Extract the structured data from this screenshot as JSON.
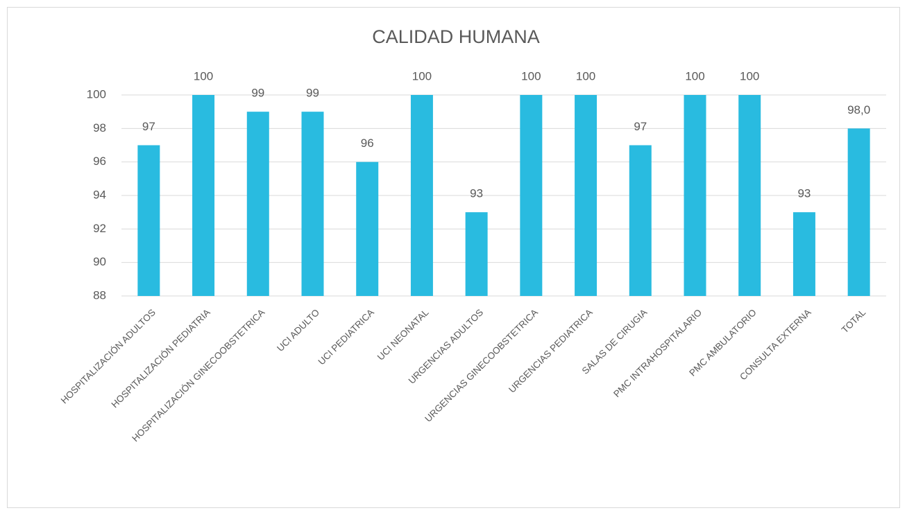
{
  "chart_data": {
    "type": "bar",
    "title": "CALIDAD  HUMANA",
    "categories": [
      "HOSPITALIZACIÓN ADULTOS",
      "HOSPITALIZACIÓN PEDIATRIA",
      "HOSPITALIZACIÓN GINECOOBSTETRICA",
      "UCI ADULTO",
      "UCI PEDIATRICA",
      "UCI NEONATAL",
      "URGENCIAS ADULTOS",
      "URGENCIAS GINECOOBSTETRICA",
      "URGENCIAS PEDIATRICA",
      "SALAS DE CIRUGIA",
      "PMC INTRAHOSPITALARIO",
      "PMC AMBULATORIO",
      "CONSULTA EXTERNA",
      "TOTAL"
    ],
    "values": [
      97,
      100,
      99,
      99,
      96,
      100,
      93,
      100,
      100,
      97,
      100,
      100,
      93,
      98
    ],
    "value_labels": [
      "97",
      "100",
      "99",
      "99",
      "96",
      "100",
      "93",
      "100",
      "100",
      "97",
      "100",
      "100",
      "93",
      "98,0"
    ],
    "color": "#29bbe0",
    "ylim": [
      88,
      100
    ],
    "yticks": [
      88,
      90,
      92,
      94,
      96,
      98,
      100
    ],
    "grid": true
  }
}
